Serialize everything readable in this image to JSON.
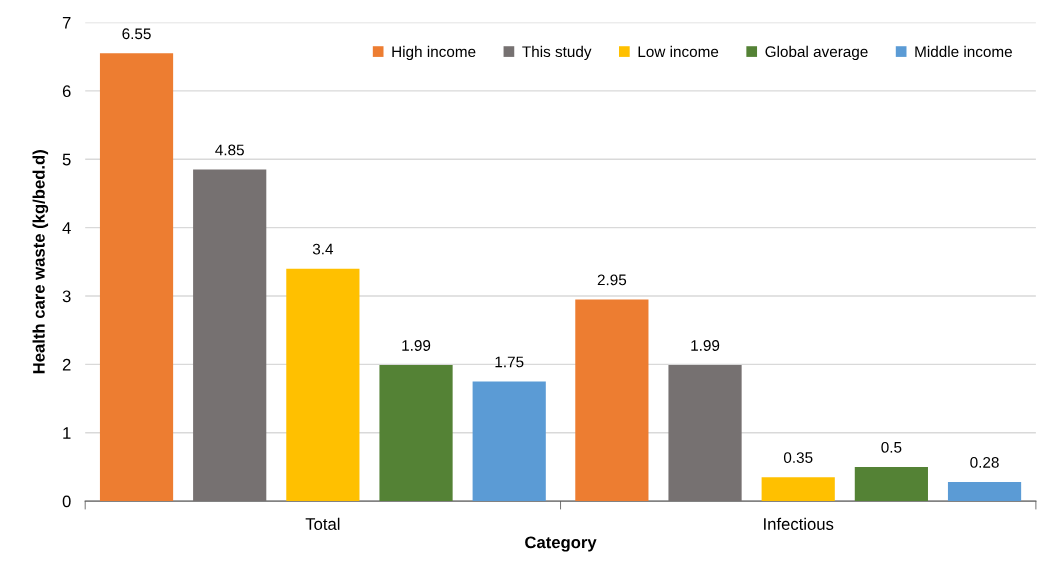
{
  "chart_data": {
    "type": "bar",
    "xlabel": "Category",
    "ylabel": "Health care waste (kg/bed.d)",
    "categories": [
      "Total",
      "Infectious"
    ],
    "series": [
      {
        "name": "High income",
        "color": "#ed7d31",
        "values": [
          6.55,
          2.95
        ]
      },
      {
        "name": "This study",
        "color": "#767171",
        "values": [
          4.85,
          1.99
        ]
      },
      {
        "name": "Low income",
        "color": "#ffc000",
        "values": [
          3.4,
          0.35
        ]
      },
      {
        "name": "Global average",
        "color": "#548235",
        "values": [
          1.99,
          0.5
        ]
      },
      {
        "name": "Middle income",
        "color": "#5b9bd5",
        "values": [
          1.75,
          0.28
        ]
      }
    ],
    "ylim": [
      0,
      7
    ],
    "yticks": [
      0,
      1,
      2,
      3,
      4,
      5,
      6,
      7
    ],
    "grid": "y",
    "legend": "top right",
    "data_labels": true
  }
}
